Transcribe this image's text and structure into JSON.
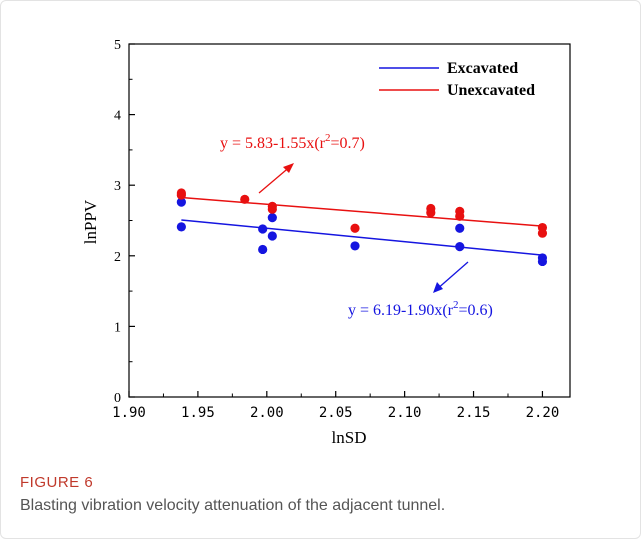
{
  "figure": {
    "label": "FIGURE 6",
    "caption": "Blasting vibration velocity attenuation of the adjacent tunnel."
  },
  "chart_data": {
    "type": "scatter",
    "xlabel": "lnSD",
    "ylabel": "lnPPV",
    "xlim": [
      1.9,
      2.22
    ],
    "ylim": [
      0,
      5
    ],
    "x_ticks": [
      "1.90",
      "1.95",
      "2.00",
      "2.05",
      "2.10",
      "2.15",
      "2.20"
    ],
    "x_tick_values": [
      1.9,
      1.95,
      2.0,
      2.05,
      2.1,
      2.15,
      2.2
    ],
    "y_ticks": [
      "0",
      "1",
      "2",
      "3",
      "4",
      "5"
    ],
    "y_tick_values": [
      0,
      1,
      2,
      3,
      4,
      5
    ],
    "grid": false,
    "legend_position": "top-right",
    "series": [
      {
        "name": "Excavated",
        "color": "#1515e0",
        "points": [
          [
            1.938,
            2.76
          ],
          [
            1.938,
            2.41
          ],
          [
            1.997,
            2.38
          ],
          [
            1.997,
            2.09
          ],
          [
            2.004,
            2.54
          ],
          [
            2.004,
            2.28
          ],
          [
            2.064,
            2.14
          ],
          [
            2.14,
            2.39
          ],
          [
            2.14,
            2.13
          ],
          [
            2.2,
            1.97
          ],
          [
            2.2,
            1.92
          ]
        ],
        "fit": {
          "intercept": 6.19,
          "slope": -1.9,
          "x_range": [
            1.938,
            2.2
          ]
        },
        "fit_label": {
          "prefix": "y = 6.19-1.90x(r",
          "sup": "2",
          "suffix": "=0.6)"
        }
      },
      {
        "name": "Unexcavated",
        "color": "#e81010",
        "points": [
          [
            1.938,
            2.89
          ],
          [
            1.938,
            2.86
          ],
          [
            1.984,
            2.8
          ],
          [
            2.004,
            2.7
          ],
          [
            2.004,
            2.66
          ],
          [
            2.064,
            2.39
          ],
          [
            2.119,
            2.67
          ],
          [
            2.119,
            2.61
          ],
          [
            2.14,
            2.63
          ],
          [
            2.14,
            2.56
          ],
          [
            2.2,
            2.4
          ],
          [
            2.2,
            2.32
          ]
        ],
        "fit": {
          "intercept": 5.83,
          "slope": -1.55,
          "x_range": [
            1.938,
            2.2
          ]
        },
        "fit_label": {
          "prefix": "y = 5.83-1.55x(r",
          "sup": "2",
          "suffix": "=0.7)"
        }
      }
    ]
  }
}
